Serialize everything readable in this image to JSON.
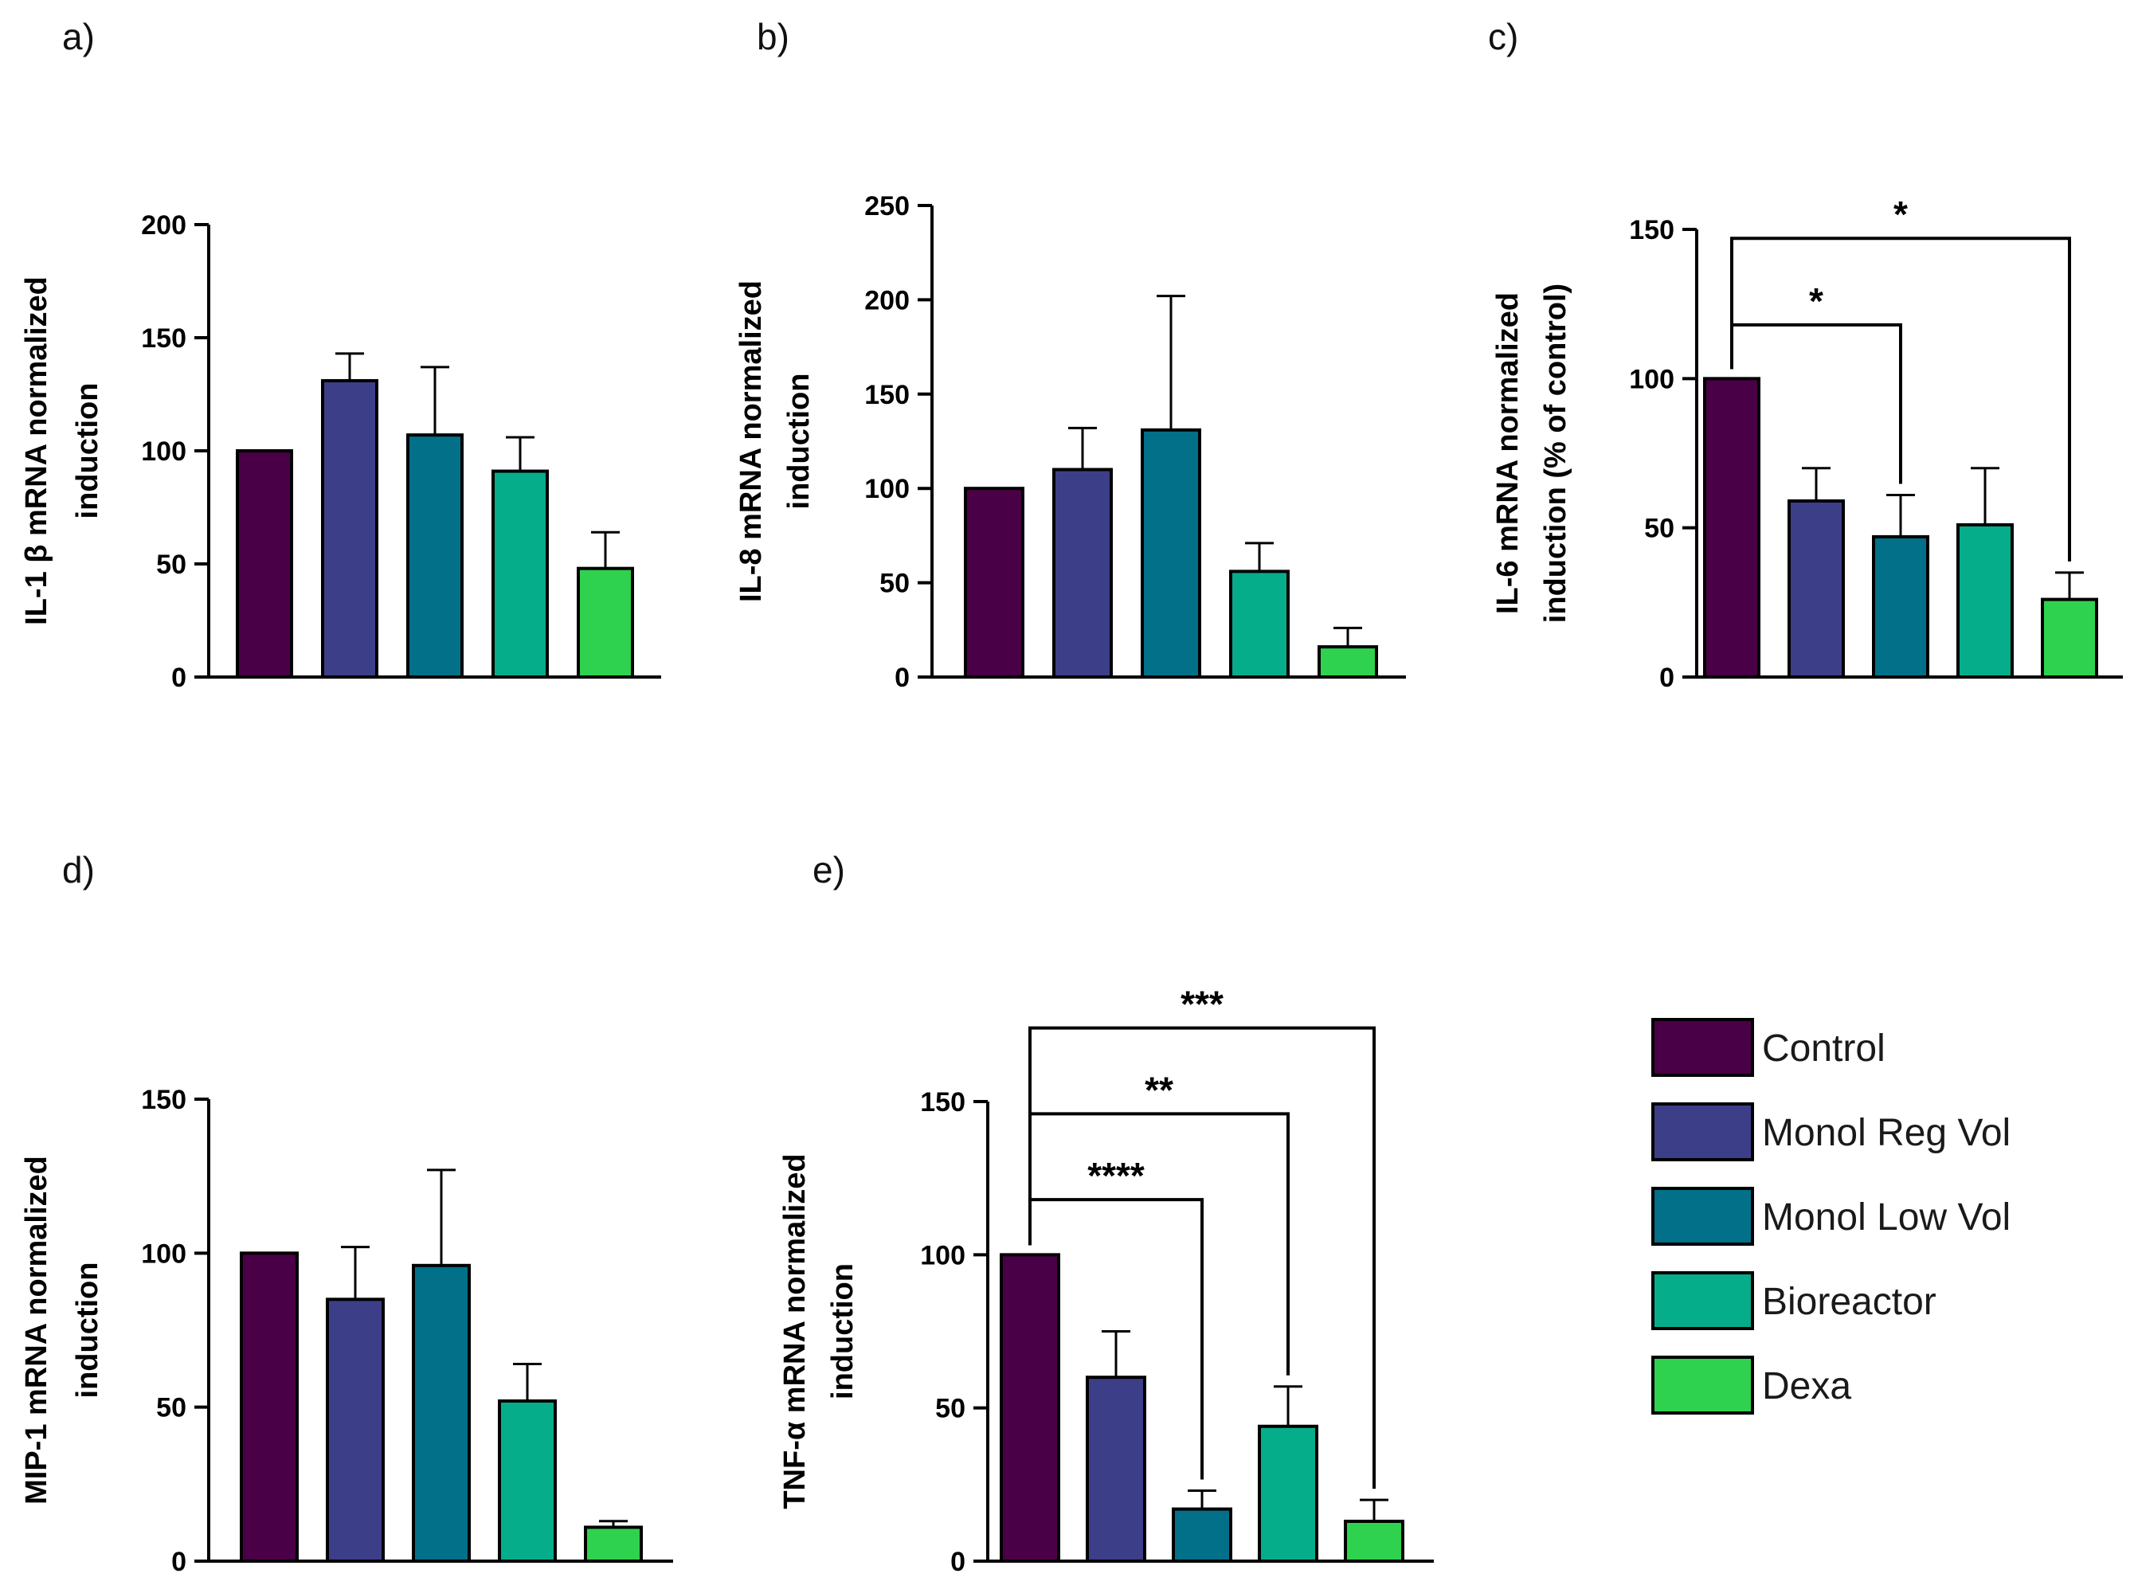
{
  "colors": {
    "Control": "#4a0047",
    "Monol Reg Vol": "#3c3f87",
    "Monol Low Vol": "#027088",
    "Bioreactor": "#06ad8b",
    "Dexa": "#2fd24e"
  },
  "legend": [
    "Control",
    "Monol Reg Vol",
    "Monol Low Vol",
    "Bioreactor",
    "Dexa"
  ],
  "chart_data": [
    {
      "type": "bar",
      "panel": "a)",
      "ylabel_lines": [
        "IL-1 β mRNA normalized",
        "induction"
      ],
      "categories": [
        "Control",
        "Monol Reg Vol",
        "Monol Low Vol",
        "Bioreactor",
        "Dexa"
      ],
      "values": [
        100,
        131,
        107,
        91,
        48
      ],
      "errors": [
        0,
        12,
        30,
        15,
        16
      ],
      "ylim": [
        0,
        200
      ],
      "yticks": [
        0,
        50,
        100,
        150,
        200
      ],
      "significance": []
    },
    {
      "type": "bar",
      "panel": "b)",
      "ylabel_lines": [
        "IL-8 mRNA normalized",
        "induction"
      ],
      "categories": [
        "Control",
        "Monol Reg Vol",
        "Monol Low Vol",
        "Bioreactor",
        "Dexa"
      ],
      "values": [
        100,
        110,
        131,
        56,
        16
      ],
      "errors": [
        0,
        22,
        71,
        15,
        10
      ],
      "ylim": [
        0,
        250
      ],
      "yticks": [
        0,
        50,
        100,
        150,
        200,
        250
      ],
      "significance": []
    },
    {
      "type": "bar",
      "panel": "c)",
      "ylabel_lines": [
        "IL-6 mRNA normalized",
        "induction (% of control)"
      ],
      "categories": [
        "Control",
        "Monol Reg Vol",
        "Monol Low Vol",
        "Bioreactor",
        "Dexa"
      ],
      "values": [
        100,
        59,
        47,
        51,
        26
      ],
      "errors": [
        0,
        11,
        14,
        19,
        9
      ],
      "ylim": [
        0,
        150
      ],
      "yticks": [
        0,
        50,
        100,
        150
      ],
      "significance": [
        {
          "from": 0,
          "to": 2,
          "label": "*",
          "level": 118
        },
        {
          "from": 0,
          "to": 4,
          "label": "*",
          "level": 147
        }
      ]
    },
    {
      "type": "bar",
      "panel": "d)",
      "ylabel_lines": [
        "MIP-1 mRNA normalized",
        "induction"
      ],
      "categories": [
        "Control",
        "Monol Reg Vol",
        "Monol Low Vol",
        "Bioreactor",
        "Dexa"
      ],
      "values": [
        100,
        85,
        96,
        52,
        11
      ],
      "errors": [
        0,
        17,
        31,
        12,
        2
      ],
      "ylim": [
        0,
        150
      ],
      "yticks": [
        0,
        50,
        100,
        150
      ],
      "significance": []
    },
    {
      "type": "bar",
      "panel": "e)",
      "ylabel_lines": [
        "TNF-α mRNA normalized",
        "induction"
      ],
      "categories": [
        "Control",
        "Monol Reg Vol",
        "Monol Low Vol",
        "Bioreactor",
        "Dexa"
      ],
      "values": [
        100,
        60,
        17,
        44,
        13
      ],
      "errors": [
        0,
        15,
        6,
        13,
        7
      ],
      "ylim": [
        0,
        150
      ],
      "yticks": [
        0,
        50,
        100,
        150
      ],
      "significance": [
        {
          "from": 0,
          "to": 2,
          "label": "****",
          "level": 118
        },
        {
          "from": 0,
          "to": 3,
          "label": "**",
          "level": 146
        },
        {
          "from": 0,
          "to": 4,
          "label": "***",
          "level": 174
        }
      ]
    }
  ]
}
